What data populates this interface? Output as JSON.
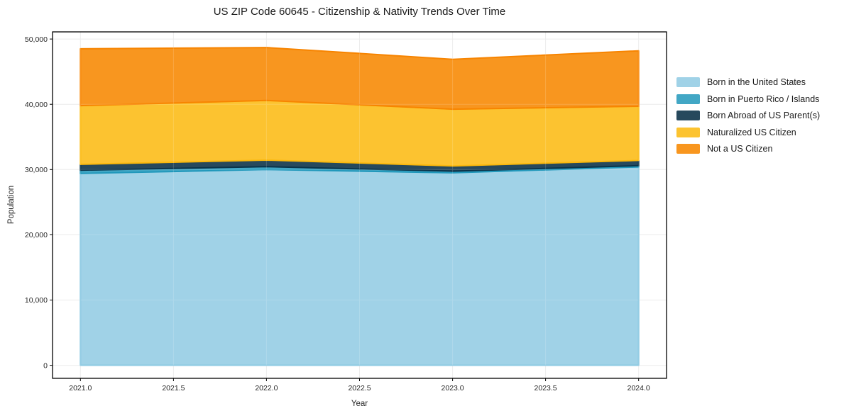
{
  "figure": {
    "title": "US ZIP Code 60645 - Citizenship & Nativity Trends Over Time"
  },
  "chart_data": {
    "type": "area",
    "stacked": true,
    "title": "US ZIP Code 60645 - Citizenship & Nativity Trends Over Time",
    "xlabel": "Year",
    "ylabel": "Population",
    "x": [
      2021,
      2022,
      2023,
      2024
    ],
    "series": [
      {
        "name": "Born in the United States",
        "color": "#A0D2E7",
        "edge_color": "#85C6E1",
        "values": [
          29400,
          30000,
          29500,
          30400
        ]
      },
      {
        "name": "Born in Puerto Rico / Islands",
        "color": "#42A7C5",
        "edge_color": "#2198BB",
        "values": [
          500,
          450,
          250,
          200
        ]
      },
      {
        "name": "Born Abroad of US Parent(s)",
        "color": "#27495D",
        "edge_color": "#0A3349",
        "values": [
          900,
          1000,
          800,
          800
        ]
      },
      {
        "name": "Naturalized US Citizen",
        "color": "#FCC330",
        "edge_color": "#FBB80C",
        "values": [
          9000,
          9150,
          8700,
          8300
        ]
      },
      {
        "name": "Not a US Citizen",
        "color": "#F8961F",
        "edge_color": "#F78400",
        "values": [
          8700,
          8100,
          7650,
          8500
        ]
      }
    ],
    "totals_by_year": [
      48500,
      48700,
      46900,
      48200
    ],
    "xlim": [
      2020.85,
      2024.15
    ],
    "ylim": [
      -2000,
      51100
    ],
    "xticks": [
      {
        "value": 2021.0,
        "label": "2021.0"
      },
      {
        "value": 2021.5,
        "label": "2021.5"
      },
      {
        "value": 2022.0,
        "label": "2022.0"
      },
      {
        "value": 2022.5,
        "label": "2022.5"
      },
      {
        "value": 2023.0,
        "label": "2023.0"
      },
      {
        "value": 2023.5,
        "label": "2023.5"
      },
      {
        "value": 2024.0,
        "label": "2024.0"
      }
    ],
    "yticks": [
      {
        "value": 0,
        "label": "0"
      },
      {
        "value": 10000,
        "label": "10,000"
      },
      {
        "value": 20000,
        "label": "20,000"
      },
      {
        "value": 30000,
        "label": "30,000"
      },
      {
        "value": 40000,
        "label": "40,000"
      },
      {
        "value": 50000,
        "label": "50,000"
      }
    ],
    "grid": true,
    "legend": {
      "position": "center-right",
      "frame": false
    }
  },
  "colors": {
    "background": "#ffffff",
    "grid": "#e9e9e9",
    "axis": "#000000",
    "text": "#262626"
  }
}
